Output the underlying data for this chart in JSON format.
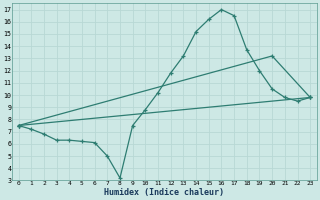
{
  "xlabel": "Humidex (Indice chaleur)",
  "xlim": [
    -0.5,
    23.5
  ],
  "ylim": [
    3,
    17.5
  ],
  "yticks": [
    3,
    4,
    5,
    6,
    7,
    8,
    9,
    10,
    11,
    12,
    13,
    14,
    15,
    16,
    17
  ],
  "xticks": [
    0,
    1,
    2,
    3,
    4,
    5,
    6,
    7,
    8,
    9,
    10,
    11,
    12,
    13,
    14,
    15,
    16,
    17,
    18,
    19,
    20,
    21,
    22,
    23
  ],
  "bg_color": "#cde8e5",
  "line_color": "#2e7d72",
  "grid_color": "#b8d8d5",
  "curve1": {
    "x": [
      0,
      1,
      2,
      3,
      4,
      5,
      6,
      7,
      8,
      9,
      10,
      11,
      12,
      13,
      14,
      15,
      16,
      17,
      18,
      19,
      20,
      21,
      22,
      23
    ],
    "y": [
      7.5,
      7.2,
      6.8,
      6.3,
      6.3,
      6.2,
      6.1,
      5.0,
      3.2,
      7.5,
      8.8,
      10.2,
      11.8,
      13.2,
      15.2,
      16.2,
      17.0,
      16.5,
      13.7,
      12.0,
      10.5,
      9.8,
      9.5,
      9.8
    ]
  },
  "curve2": {
    "x": [
      0,
      23
    ],
    "y": [
      7.5,
      9.8
    ]
  },
  "curve3": {
    "x": [
      0,
      20,
      23
    ],
    "y": [
      7.5,
      13.2,
      9.8
    ]
  }
}
